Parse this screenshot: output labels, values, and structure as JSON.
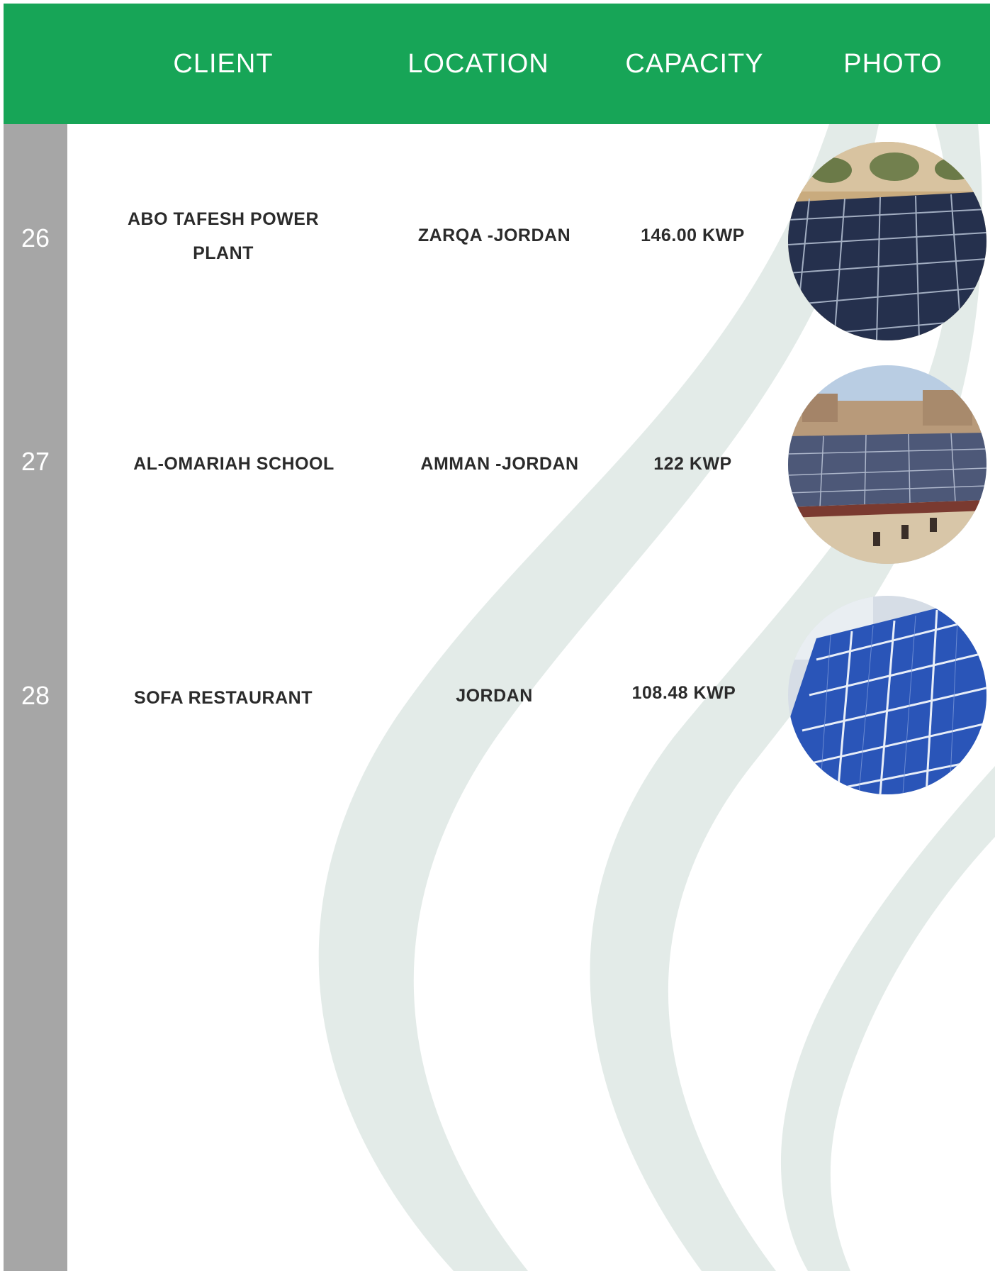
{
  "header": {
    "client": "CLIENT",
    "location": "LOCATION",
    "capacity": "CAPACITY",
    "photo": "PHOTO"
  },
  "rows": [
    {
      "number": "26",
      "client_line1": "ABO TAFESH POWER",
      "client_line2": "PLANT",
      "location": "ZARQA -JORDAN",
      "capacity": "146.00 KWP",
      "photo": "solar-panel-field-photo"
    },
    {
      "number": "27",
      "client_line1": "AL-OMARIAH SCHOOL",
      "location": "AMMAN -JORDAN",
      "capacity": "122 KWP",
      "photo": "rooftop-solar-school-photo"
    },
    {
      "number": "28",
      "client_line1": "SOFA RESTAURANT",
      "location": "JORDAN",
      "capacity": "108.48 KWP",
      "photo": "blue-solar-panels-closeup-photo"
    }
  ],
  "colors": {
    "header_green": "#17a557",
    "side_bar_gray": "#a6a6a6",
    "wave_tint": "#e3ebe8",
    "text_dark": "#2b2b2b"
  }
}
